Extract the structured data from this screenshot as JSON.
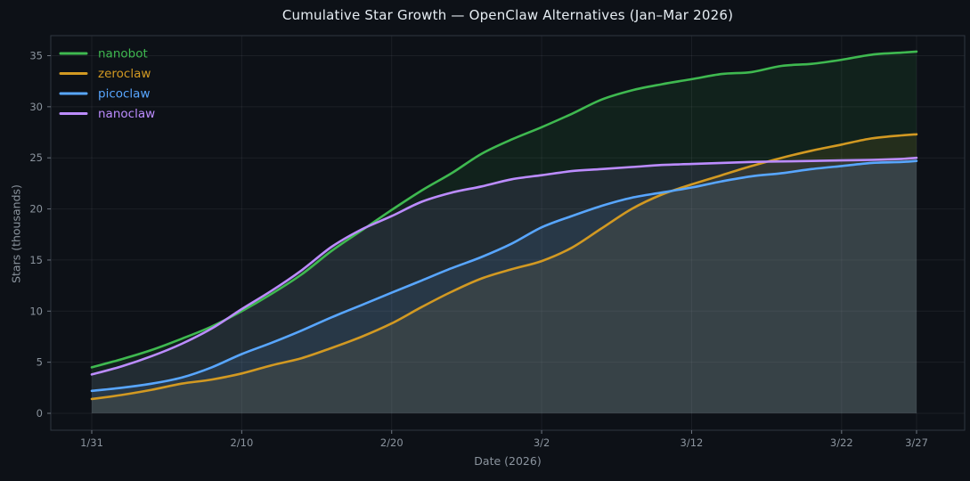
{
  "title": "Cumulative Star Growth — OpenClaw Alternatives (Jan–Mar 2026)",
  "axes": {
    "x_label": "Date (2026)",
    "y_label": "Stars (thousands)",
    "x_tick_labels": [
      "1/31",
      "2/10",
      "2/20",
      "3/2",
      "3/12",
      "3/22",
      "3/27"
    ],
    "x_tick_days": [
      0,
      10,
      20,
      30,
      40,
      50,
      55
    ],
    "y_tick_labels": [
      "0",
      "5",
      "10",
      "15",
      "20",
      "25",
      "30",
      "35"
    ],
    "y_ticks": [
      0,
      5,
      10,
      15,
      20,
      25,
      30,
      35
    ]
  },
  "legend": {
    "position": "upper left",
    "items": [
      {
        "label": "nanobot",
        "color": "#3fb950"
      },
      {
        "label": "zeroclaw",
        "color": "#d29922"
      },
      {
        "label": "picoclaw",
        "color": "#58a6ff"
      },
      {
        "label": "nanoclaw",
        "color": "#bc8cff"
      }
    ]
  },
  "colors": {
    "background": "#0d1117",
    "title_text": "#e6edf3",
    "tick_text": "#8b949e",
    "grid": "rgba(201,209,217,0.08)",
    "spine": "#2f3640",
    "tick_mark": "#6e7681"
  },
  "chart_data": {
    "type": "line",
    "title": "Cumulative Star Growth — OpenClaw Alternatives (Jan–Mar 2026)",
    "xlabel": "Date (2026)",
    "ylabel": "Stars (thousands)",
    "grid": true,
    "legend_position": "upper left",
    "area_fill_opacity": 0.1,
    "line_width": 2.6,
    "ylim": [
      0,
      37
    ],
    "x_range_days": [
      0,
      55
    ],
    "x_dates": [
      "1/31",
      "2/2",
      "2/4",
      "2/6",
      "2/8",
      "2/10",
      "2/12",
      "2/14",
      "2/16",
      "2/18",
      "2/20",
      "2/22",
      "2/24",
      "2/26",
      "2/28",
      "3/2",
      "3/4",
      "3/6",
      "3/8",
      "3/10",
      "3/12",
      "3/14",
      "3/16",
      "3/18",
      "3/20",
      "3/22",
      "3/24",
      "3/26",
      "3/27"
    ],
    "x_days_from_start": [
      0,
      2,
      4,
      6,
      8,
      10,
      12,
      14,
      16,
      18,
      20,
      22,
      24,
      26,
      28,
      30,
      32,
      34,
      36,
      38,
      40,
      42,
      44,
      46,
      48,
      50,
      52,
      54,
      55
    ],
    "series": [
      {
        "name": "nanobot",
        "color": "#3fb950",
        "values": [
          4.5,
          5.3,
          6.2,
          7.3,
          8.5,
          10.0,
          11.7,
          13.6,
          15.9,
          17.9,
          19.9,
          21.8,
          23.5,
          25.4,
          26.8,
          28.0,
          29.3,
          30.7,
          31.6,
          32.2,
          32.7,
          33.2,
          33.4,
          34.0,
          34.2,
          34.6,
          35.1,
          35.3,
          35.4
        ]
      },
      {
        "name": "zeroclaw",
        "color": "#d29922",
        "values": [
          1.4,
          1.8,
          2.3,
          2.9,
          3.3,
          3.9,
          4.7,
          5.4,
          6.4,
          7.5,
          8.8,
          10.4,
          11.9,
          13.2,
          14.1,
          14.9,
          16.2,
          18.1,
          20.0,
          21.4,
          22.4,
          23.3,
          24.2,
          25.0,
          25.7,
          26.3,
          26.9,
          27.2,
          27.3
        ]
      },
      {
        "name": "picoclaw",
        "color": "#58a6ff",
        "values": [
          2.2,
          2.5,
          2.9,
          3.5,
          4.5,
          5.8,
          6.9,
          8.1,
          9.4,
          10.6,
          11.8,
          13.0,
          14.2,
          15.3,
          16.6,
          18.2,
          19.3,
          20.3,
          21.1,
          21.6,
          22.1,
          22.7,
          23.2,
          23.5,
          23.9,
          24.2,
          24.5,
          24.6,
          24.7
        ]
      },
      {
        "name": "nanoclaw",
        "color": "#bc8cff",
        "values": [
          3.8,
          4.6,
          5.6,
          6.8,
          8.3,
          10.2,
          12.0,
          14.0,
          16.3,
          18.0,
          19.3,
          20.7,
          21.6,
          22.2,
          22.9,
          23.3,
          23.7,
          23.9,
          24.1,
          24.3,
          24.4,
          24.5,
          24.6,
          24.65,
          24.7,
          24.75,
          24.8,
          24.9,
          25.0
        ]
      }
    ]
  }
}
